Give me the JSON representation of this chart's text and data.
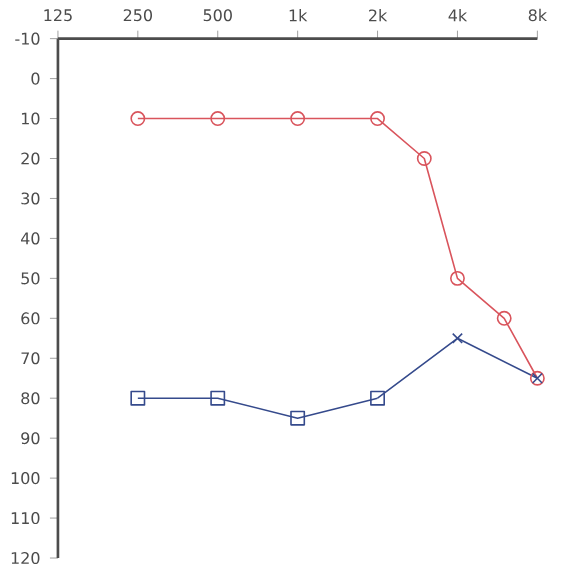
{
  "chart_data": {
    "type": "line",
    "log": "x",
    "xlim": [
      125,
      8000
    ],
    "ylim": [
      120,
      -10
    ],
    "xticks": [
      125,
      250,
      500,
      {
        "value": 1000,
        "label": "1k"
      },
      {
        "value": 2000,
        "label": "2k"
      },
      {
        "value": 4000,
        "label": "4k"
      },
      {
        "value": 8000,
        "label": "8k"
      }
    ],
    "yticks": [
      -10,
      0,
      10,
      20,
      30,
      40,
      50,
      60,
      70,
      80,
      90,
      100,
      110,
      120
    ],
    "grid": false,
    "line_style": "solid",
    "series": [
      {
        "color": "#d9545c",
        "marker": "circle",
        "x": [
          250,
          500,
          1000,
          2000,
          3000,
          4000,
          6000,
          8000
        ],
        "values": [
          10,
          10,
          10,
          10,
          20,
          50,
          60,
          75
        ]
      },
      {
        "color": "#354a8c",
        "marker": "square",
        "x": [
          250,
          500,
          1000,
          2000
        ],
        "values": [
          80,
          80,
          85,
          80
        ]
      },
      {
        "color": "#354a8c",
        "marker": "cross",
        "x": [
          2000,
          4000,
          8000
        ],
        "values": [
          80,
          65,
          75
        ]
      }
    ]
  }
}
